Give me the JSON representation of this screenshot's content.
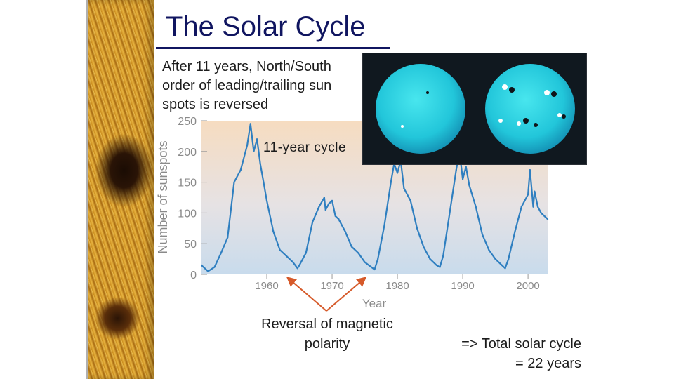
{
  "slide": {
    "title": "The Solar Cycle",
    "intro_lines": [
      "After 11 years, North/South",
      "order of leading/trailing sun",
      "spots is reversed"
    ],
    "polarity_lines": [
      "Reversal of magnetic",
      "polarity"
    ],
    "total_lines": [
      "=> Total solar cycle",
      "= 22 years"
    ],
    "colors": {
      "title": "#101560",
      "series": "#2f7fc0",
      "arrow": "#d65a2a",
      "sun_disk": "#22d0e0"
    }
  },
  "chart_data": {
    "type": "line",
    "title": "",
    "xlabel": "Year",
    "ylabel": "Number of sunspots",
    "xlim": [
      1950,
      2003
    ],
    "ylim": [
      0,
      250
    ],
    "x_ticks": [
      1960,
      1970,
      1980,
      1990,
      2000
    ],
    "y_ticks": [
      0,
      50,
      100,
      150,
      200,
      250
    ],
    "annotation": "11-year cycle",
    "series": [
      {
        "x": [
          1950,
          1951,
          1952,
          1953,
          1954,
          1955,
          1956,
          1957,
          1957.5,
          1958,
          1958.5,
          1959,
          1959.5,
          1960,
          1961,
          1962,
          1963,
          1964,
          1964.7,
          1965,
          1966,
          1967,
          1968,
          1968.8,
          1969,
          1969.5,
          1970,
          1970.5,
          1971,
          1972,
          1973,
          1974,
          1975,
          1976,
          1976.5,
          1977,
          1978,
          1979,
          1979.5,
          1980,
          1980.5,
          1981,
          1982,
          1983,
          1984,
          1985,
          1986,
          1986.5,
          1987,
          1988,
          1989,
          1989.5,
          1990,
          1990.5,
          1991,
          1992,
          1993,
          1994,
          1995,
          1996,
          1996.5,
          1997,
          1998,
          1999,
          2000,
          2000.3,
          2000.8,
          2001,
          2001.5,
          2002,
          2003
        ],
        "y": [
          15,
          5,
          12,
          35,
          60,
          150,
          170,
          210,
          245,
          200,
          220,
          180,
          150,
          120,
          70,
          40,
          30,
          20,
          10,
          15,
          35,
          85,
          110,
          125,
          105,
          115,
          120,
          95,
          90,
          70,
          45,
          35,
          20,
          12,
          8,
          25,
          80,
          150,
          180,
          165,
          185,
          140,
          120,
          75,
          45,
          25,
          15,
          12,
          30,
          100,
          170,
          200,
          155,
          175,
          145,
          110,
          65,
          40,
          25,
          15,
          10,
          25,
          70,
          110,
          130,
          170,
          110,
          135,
          110,
          100,
          90
        ]
      }
    ]
  }
}
